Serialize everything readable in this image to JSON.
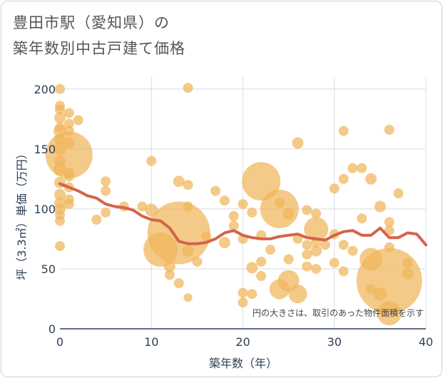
{
  "title_line1": "豊田市駅（愛知県）の",
  "title_line2": "築年数別中古戸建て価格",
  "chart_data": {
    "type": "scatter",
    "title": "豊田市駅（愛知県）の 築年数別中古戸建て価格",
    "xlabel": "築年数（年）",
    "ylabel": "坪（3.3㎡）単価（万円）",
    "xlim": [
      0,
      40
    ],
    "ylim": [
      0,
      210
    ],
    "xticks": [
      0,
      10,
      20,
      30,
      40
    ],
    "yticks": [
      0,
      50,
      100,
      150,
      200
    ],
    "note": "円の大きさは、取引のあった物件面積を示す",
    "bubble_color": "#f0b55a",
    "line_color": "#d4644a",
    "bubbles": [
      {
        "x": 0,
        "y": 200,
        "s": 7
      },
      {
        "x": 0,
        "y": 186,
        "s": 7
      },
      {
        "x": 0,
        "y": 183,
        "s": 7
      },
      {
        "x": 0,
        "y": 176,
        "s": 8
      },
      {
        "x": 0,
        "y": 168,
        "s": 7
      },
      {
        "x": 0,
        "y": 165,
        "s": 9
      },
      {
        "x": 0,
        "y": 158,
        "s": 8
      },
      {
        "x": 0,
        "y": 150,
        "s": 9
      },
      {
        "x": 0,
        "y": 140,
        "s": 8
      },
      {
        "x": 0,
        "y": 133,
        "s": 9
      },
      {
        "x": 0,
        "y": 122,
        "s": 8
      },
      {
        "x": 0,
        "y": 112,
        "s": 8
      },
      {
        "x": 0,
        "y": 105,
        "s": 8
      },
      {
        "x": 0,
        "y": 100,
        "s": 8
      },
      {
        "x": 0,
        "y": 95,
        "s": 7
      },
      {
        "x": 0,
        "y": 90,
        "s": 7
      },
      {
        "x": 0,
        "y": 69,
        "s": 7
      },
      {
        "x": 1,
        "y": 180,
        "s": 7
      },
      {
        "x": 1,
        "y": 171,
        "s": 7
      },
      {
        "x": 1,
        "y": 165,
        "s": 7
      },
      {
        "x": 1,
        "y": 155,
        "s": 8
      },
      {
        "x": 1,
        "y": 145,
        "s": 33
      },
      {
        "x": 1,
        "y": 130,
        "s": 7
      },
      {
        "x": 1,
        "y": 127,
        "s": 7
      },
      {
        "x": 1,
        "y": 118,
        "s": 7
      },
      {
        "x": 1,
        "y": 108,
        "s": 7
      },
      {
        "x": 1,
        "y": 104,
        "s": 7
      },
      {
        "x": 2,
        "y": 174,
        "s": 7
      },
      {
        "x": 4,
        "y": 91,
        "s": 7
      },
      {
        "x": 5,
        "y": 123,
        "s": 7
      },
      {
        "x": 5,
        "y": 115,
        "s": 7
      },
      {
        "x": 5,
        "y": 97,
        "s": 7
      },
      {
        "x": 7,
        "y": 102,
        "s": 7
      },
      {
        "x": 10,
        "y": 140,
        "s": 7
      },
      {
        "x": 10,
        "y": 99,
        "s": 9
      },
      {
        "x": 9,
        "y": 102,
        "s": 7
      },
      {
        "x": 11,
        "y": 66,
        "s": 24
      },
      {
        "x": 12,
        "y": 52,
        "s": 8
      },
      {
        "x": 12,
        "y": 45,
        "s": 7
      },
      {
        "x": 13,
        "y": 80,
        "s": 44
      },
      {
        "x": 13,
        "y": 123,
        "s": 8
      },
      {
        "x": 14,
        "y": 120,
        "s": 7
      },
      {
        "x": 14,
        "y": 102,
        "s": 7
      },
      {
        "x": 14,
        "y": 65,
        "s": 8
      },
      {
        "x": 13,
        "y": 38,
        "s": 7
      },
      {
        "x": 14,
        "y": 26,
        "s": 6
      },
      {
        "x": 14,
        "y": 201,
        "s": 7
      },
      {
        "x": 15,
        "y": 56,
        "s": 7
      },
      {
        "x": 16,
        "y": 77,
        "s": 7
      },
      {
        "x": 17,
        "y": 115,
        "s": 7
      },
      {
        "x": 18,
        "y": 107,
        "s": 7
      },
      {
        "x": 18,
        "y": 72,
        "s": 8
      },
      {
        "x": 19,
        "y": 94,
        "s": 7
      },
      {
        "x": 19,
        "y": 86,
        "s": 7
      },
      {
        "x": 20,
        "y": 104,
        "s": 7
      },
      {
        "x": 20,
        "y": 75,
        "s": 7
      },
      {
        "x": 20,
        "y": 30,
        "s": 7
      },
      {
        "x": 20,
        "y": 22,
        "s": 7
      },
      {
        "x": 21,
        "y": 97,
        "s": 7
      },
      {
        "x": 21,
        "y": 51,
        "s": 8
      },
      {
        "x": 21,
        "y": 29,
        "s": 7
      },
      {
        "x": 22,
        "y": 123,
        "s": 27
      },
      {
        "x": 22,
        "y": 78,
        "s": 7
      },
      {
        "x": 22,
        "y": 56,
        "s": 7
      },
      {
        "x": 22,
        "y": 44,
        "s": 7
      },
      {
        "x": 23,
        "y": 66,
        "s": 7
      },
      {
        "x": 24,
        "y": 100,
        "s": 27
      },
      {
        "x": 24,
        "y": 33,
        "s": 14
      },
      {
        "x": 24,
        "y": 105,
        "s": 7
      },
      {
        "x": 25,
        "y": 96,
        "s": 8
      },
      {
        "x": 25,
        "y": 58,
        "s": 7
      },
      {
        "x": 25,
        "y": 40,
        "s": 15
      },
      {
        "x": 26,
        "y": 155,
        "s": 8
      },
      {
        "x": 26,
        "y": 75,
        "s": 7
      },
      {
        "x": 26,
        "y": 29,
        "s": 13
      },
      {
        "x": 27,
        "y": 99,
        "s": 7
      },
      {
        "x": 27,
        "y": 70,
        "s": 7
      },
      {
        "x": 27,
        "y": 62,
        "s": 7
      },
      {
        "x": 27,
        "y": 52,
        "s": 7
      },
      {
        "x": 28,
        "y": 96,
        "s": 7
      },
      {
        "x": 28,
        "y": 83,
        "s": 17
      },
      {
        "x": 28,
        "y": 72,
        "s": 7
      },
      {
        "x": 28,
        "y": 65,
        "s": 8
      },
      {
        "x": 28,
        "y": 50,
        "s": 7
      },
      {
        "x": 29,
        "y": 70,
        "s": 7
      },
      {
        "x": 30,
        "y": 117,
        "s": 7
      },
      {
        "x": 30,
        "y": 79,
        "s": 7
      },
      {
        "x": 30,
        "y": 55,
        "s": 7
      },
      {
        "x": 31,
        "y": 165,
        "s": 7
      },
      {
        "x": 31,
        "y": 125,
        "s": 7
      },
      {
        "x": 31,
        "y": 70,
        "s": 7
      },
      {
        "x": 31,
        "y": 48,
        "s": 7
      },
      {
        "x": 32,
        "y": 134,
        "s": 7
      },
      {
        "x": 32,
        "y": 65,
        "s": 7
      },
      {
        "x": 33,
        "y": 134,
        "s": 7
      },
      {
        "x": 33,
        "y": 92,
        "s": 7
      },
      {
        "x": 34,
        "y": 125,
        "s": 8
      },
      {
        "x": 34,
        "y": 58,
        "s": 16
      },
      {
        "x": 34,
        "y": 33,
        "s": 7
      },
      {
        "x": 35,
        "y": 102,
        "s": 8
      },
      {
        "x": 35,
        "y": 29,
        "s": 9
      },
      {
        "x": 36,
        "y": 166,
        "s": 7
      },
      {
        "x": 36,
        "y": 89,
        "s": 7
      },
      {
        "x": 36,
        "y": 82,
        "s": 7
      },
      {
        "x": 36,
        "y": 68,
        "s": 7
      },
      {
        "x": 36,
        "y": 40,
        "s": 46
      },
      {
        "x": 36,
        "y": 13,
        "s": 17
      },
      {
        "x": 37,
        "y": 113,
        "s": 7
      },
      {
        "x": 38,
        "y": 55,
        "s": 7
      },
      {
        "x": 38,
        "y": 46,
        "s": 8
      }
    ],
    "trend": {
      "x": [
        0,
        1,
        2,
        3,
        4,
        5,
        6,
        7,
        8,
        9,
        10,
        11,
        12,
        13,
        14,
        15,
        16,
        17,
        18,
        19,
        20,
        21,
        22,
        23,
        24,
        25,
        26,
        27,
        28,
        29,
        30,
        31,
        32,
        33,
        34,
        35,
        36,
        37,
        38,
        39,
        40
      ],
      "y": [
        121,
        118,
        115,
        111,
        109,
        104,
        102,
        101,
        99,
        94,
        91,
        90,
        84,
        73,
        71,
        71,
        72,
        75,
        80,
        82,
        78,
        76,
        75,
        75,
        77,
        78,
        79,
        76,
        75,
        74,
        78,
        81,
        82,
        78,
        78,
        84,
        76,
        76,
        80,
        79,
        70
      ]
    }
  }
}
